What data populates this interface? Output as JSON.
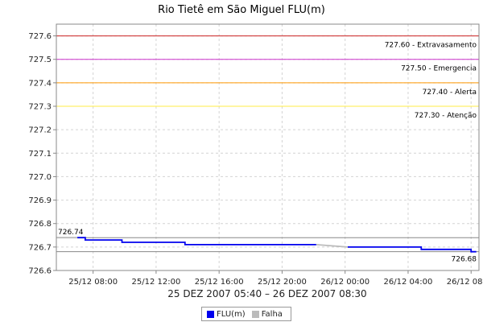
{
  "chart_data": {
    "type": "line",
    "title": "Rio Tietê em São Miguel FLU(m)",
    "xlabel": "25 DEZ 2007 05:40 – 26 DEZ 2007 08:30",
    "ylabel": "",
    "x_range": [
      "2007-12-25 05:40",
      "2007-12-26 08:30"
    ],
    "ylim": [
      726.6,
      727.65
    ],
    "y_ticks": [
      "727.6",
      "727.5",
      "727.4",
      "727.3",
      "727.2",
      "727.1",
      "727.0",
      "726.9",
      "726.8",
      "726.7",
      "726.6"
    ],
    "x_ticks": [
      "25/12 08:00",
      "25/12 12:00",
      "25/12 16:00",
      "25/12 20:00",
      "26/12 00:00",
      "26/12 04:00",
      "26/12 08:00"
    ],
    "grid": true,
    "legend_position": "bottom-center",
    "thresholds": [
      {
        "value": 727.6,
        "label": "727.60 - Extravasamento",
        "color": "#cc2222"
      },
      {
        "value": 727.5,
        "label": "727.50 - Emergencia",
        "color": "#cc33cc"
      },
      {
        "value": 727.4,
        "label": "727.40 - Alerta",
        "color": "#ff9900"
      },
      {
        "value": 727.3,
        "label": "727.30 - Atenção",
        "color": "#ffee44"
      }
    ],
    "reference_lines": [
      {
        "value": 726.74,
        "label": "726.74",
        "color": "#888888"
      },
      {
        "value": 726.68,
        "label": "726.68",
        "color": "#888888"
      }
    ],
    "series": [
      {
        "name": "FLU(m)",
        "color": "#0000ee",
        "segments": [
          [
            [
              "2007-12-25 07:00",
              726.74
            ],
            [
              "2007-12-25 07:30",
              726.74
            ],
            [
              "2007-12-25 07:30",
              726.73
            ],
            [
              "2007-12-25 09:50",
              726.73
            ],
            [
              "2007-12-25 09:50",
              726.72
            ],
            [
              "2007-12-25 13:50",
              726.72
            ],
            [
              "2007-12-25 13:50",
              726.71
            ],
            [
              "2007-12-25 22:10",
              726.71
            ]
          ],
          [
            [
              "2007-12-26 00:10",
              726.7
            ],
            [
              "2007-12-26 04:50",
              726.7
            ],
            [
              "2007-12-26 04:50",
              726.69
            ],
            [
              "2007-12-26 08:00",
              726.69
            ],
            [
              "2007-12-26 08:00",
              726.68
            ],
            [
              "2007-12-26 08:20",
              726.68
            ]
          ]
        ]
      },
      {
        "name": "Falha",
        "color": "#bbbbbb",
        "segments": [
          [
            [
              "2007-12-25 05:40",
              726.74
            ],
            [
              "2007-12-25 07:00",
              726.74
            ]
          ],
          [
            [
              "2007-12-25 22:10",
              726.71
            ],
            [
              "2007-12-26 00:10",
              726.7
            ]
          ]
        ]
      }
    ]
  }
}
